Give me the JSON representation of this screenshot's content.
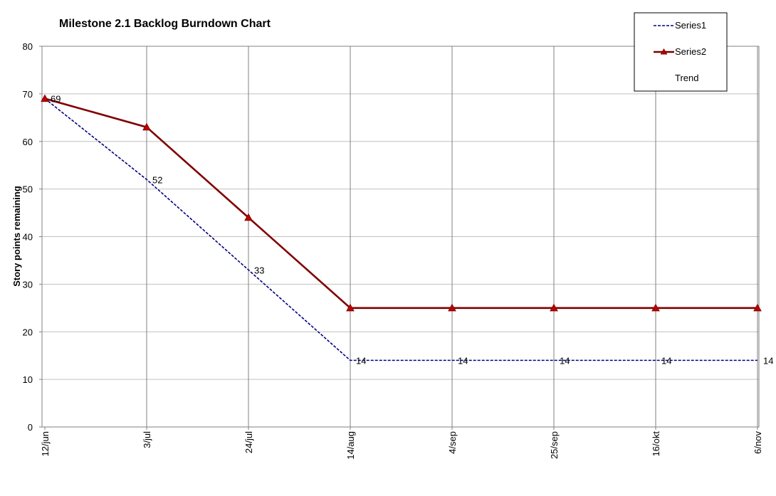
{
  "chart_data": {
    "type": "line",
    "title": "Milestone 2.1 Backlog Burndown Chart",
    "ylabel": "Story points remaining",
    "xlabel": "",
    "ylim": [
      0,
      80
    ],
    "yticks": [
      "0",
      "10",
      "20",
      "30",
      "40",
      "50",
      "60",
      "70",
      "80"
    ],
    "categories": [
      "12/jun",
      "3/jul",
      "24/jul",
      "14/aug",
      "4/sep",
      "25/sep",
      "16/okt",
      "6/nov"
    ],
    "series": [
      {
        "name": "Series1",
        "values": [
          69,
          52,
          33,
          14,
          14,
          14,
          14,
          14
        ],
        "labels": [
          "69",
          "52",
          "33",
          "14",
          "14",
          "14",
          "14",
          "14"
        ],
        "color": "#000080",
        "style": "dashed"
      },
      {
        "name": "Series2",
        "values": [
          69,
          63,
          44,
          25,
          25,
          25,
          25,
          25
        ],
        "color": "#800000",
        "style": "solid",
        "marker": "triangle"
      }
    ],
    "legend": {
      "position": "top-right",
      "entries": [
        "Series1",
        "Series2",
        "Trend"
      ]
    },
    "grid": true
  }
}
